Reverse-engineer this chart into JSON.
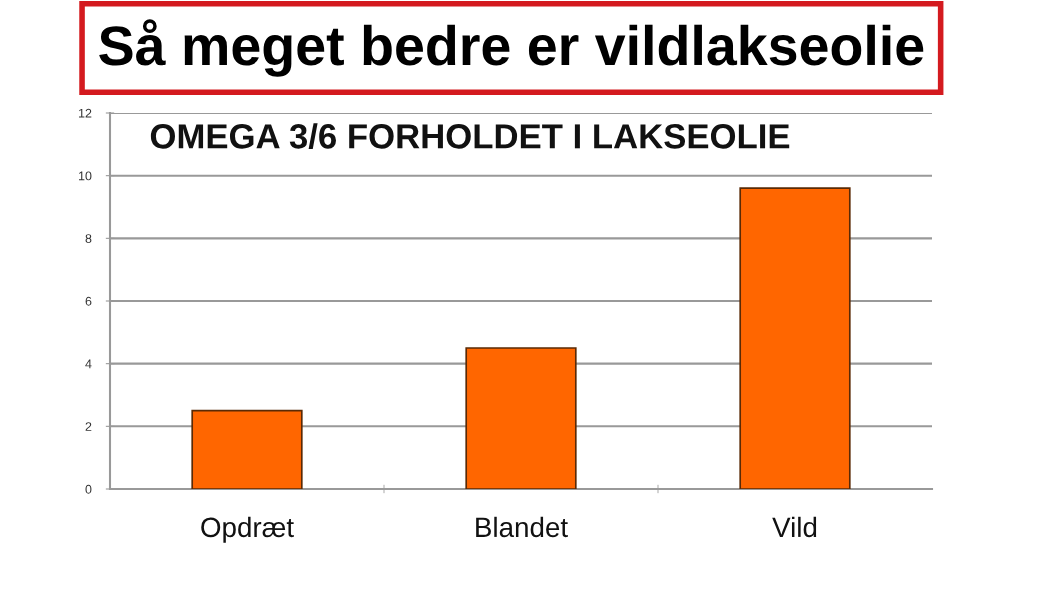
{
  "chart_data": {
    "type": "bar",
    "title": "Så meget bedre er vildlakseolie",
    "subtitle": "OMEGA 3/6 FORHOLDET I LAKSEOLIE",
    "categories": [
      "Opdræt",
      "Blandet",
      "Vild"
    ],
    "values": [
      2.5,
      4.5,
      9.6
    ],
    "color": "#ff6600",
    "ylim": [
      0,
      12
    ],
    "yticks": [
      0,
      2,
      4,
      6,
      8,
      10,
      12
    ],
    "grid": "y"
  }
}
